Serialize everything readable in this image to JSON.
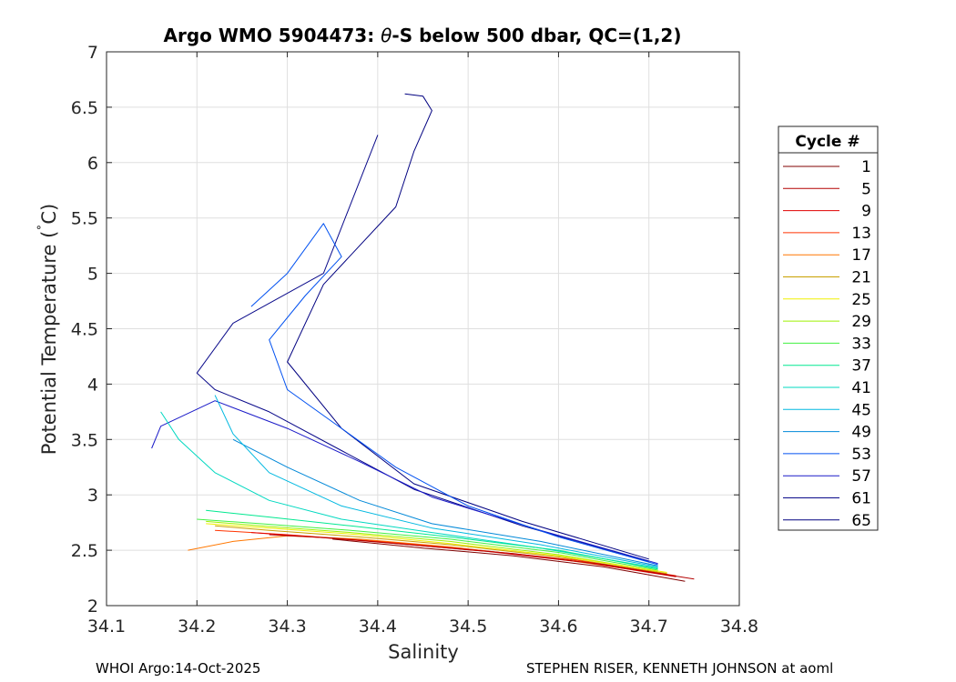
{
  "chart_data": {
    "type": "line",
    "title": "Argo WMO 5904473: θ-S below 500 dbar,  QC=(1,2)",
    "title_parts": {
      "prefix": "Argo WMO 5904473: ",
      "symbol": "θ",
      "suffix": "-S below 500 dbar,  QC=(1,2)"
    },
    "xlabel": "Salinity",
    "ylabel": "Potential Temperature (˚C)",
    "ylabel_parts": {
      "text": "Potential Temperature (",
      "degree": "˚",
      "unit": "C)"
    },
    "xlim": [
      34.1,
      34.8
    ],
    "ylim": [
      2,
      7
    ],
    "xticks": [
      "34.1",
      "34.2",
      "34.3",
      "34.4",
      "34.5",
      "34.6",
      "34.7",
      "34.8"
    ],
    "yticks": [
      "2",
      "2.5",
      "3",
      "3.5",
      "4",
      "4.5",
      "5",
      "5.5",
      "6",
      "6.5",
      "7"
    ],
    "grid": true,
    "legend": {
      "title": "Cycle #",
      "placement": "right",
      "entries": [
        {
          "label": "1",
          "color": "#800000"
        },
        {
          "label": "5",
          "color": "#b30000"
        },
        {
          "label": "9",
          "color": "#e00000"
        },
        {
          "label": "13",
          "color": "#ff3300"
        },
        {
          "label": "17",
          "color": "#ff7700"
        },
        {
          "label": "21",
          "color": "#c8a000"
        },
        {
          "label": "25",
          "color": "#f0f000"
        },
        {
          "label": "29",
          "color": "#9ef000"
        },
        {
          "label": "33",
          "color": "#40f040"
        },
        {
          "label": "37",
          "color": "#00e890"
        },
        {
          "label": "41",
          "color": "#00d8c0"
        },
        {
          "label": "45",
          "color": "#00b8e0"
        },
        {
          "label": "49",
          "color": "#0088d8"
        },
        {
          "label": "53",
          "color": "#0050f0"
        },
        {
          "label": "57",
          "color": "#1a1ac8"
        },
        {
          "label": "61",
          "color": "#0a0a8a"
        },
        {
          "label": "65",
          "color": "#000080"
        }
      ]
    },
    "series": [
      {
        "name": "1",
        "x": [
          34.74,
          34.65,
          34.55,
          34.45,
          34.35
        ],
        "y": [
          2.22,
          2.35,
          2.45,
          2.52,
          2.6
        ]
      },
      {
        "name": "5",
        "x": [
          34.75,
          34.65,
          34.55,
          34.45,
          34.35,
          34.28
        ],
        "y": [
          2.24,
          2.37,
          2.47,
          2.54,
          2.61,
          2.64
        ]
      },
      {
        "name": "9",
        "x": [
          34.73,
          34.63,
          34.52,
          34.42,
          34.33,
          34.26
        ],
        "y": [
          2.26,
          2.39,
          2.49,
          2.56,
          2.62,
          2.66
        ]
      },
      {
        "name": "13",
        "x": [
          34.73,
          34.62,
          34.5,
          34.4,
          34.3,
          34.22
        ],
        "y": [
          2.27,
          2.41,
          2.51,
          2.58,
          2.64,
          2.68
        ]
      },
      {
        "name": "17",
        "x": [
          34.72,
          34.6,
          34.48,
          34.38,
          34.3,
          34.24,
          34.19
        ],
        "y": [
          2.28,
          2.42,
          2.53,
          2.6,
          2.63,
          2.58,
          2.5
        ]
      },
      {
        "name": "21",
        "x": [
          34.72,
          34.6,
          34.48,
          34.38,
          34.28,
          34.22
        ],
        "y": [
          2.29,
          2.44,
          2.55,
          2.62,
          2.68,
          2.72
        ]
      },
      {
        "name": "25",
        "x": [
          34.72,
          34.6,
          34.48,
          34.38,
          34.28,
          34.21
        ],
        "y": [
          2.3,
          2.45,
          2.56,
          2.64,
          2.7,
          2.74
        ]
      },
      {
        "name": "29",
        "x": [
          34.71,
          34.6,
          34.48,
          34.37,
          34.27,
          34.21
        ],
        "y": [
          2.31,
          2.46,
          2.58,
          2.66,
          2.72,
          2.76
        ]
      },
      {
        "name": "33",
        "x": [
          34.71,
          34.6,
          34.48,
          34.37,
          34.27,
          34.2
        ],
        "y": [
          2.32,
          2.48,
          2.6,
          2.68,
          2.74,
          2.78
        ]
      },
      {
        "name": "37",
        "x": [
          34.71,
          34.6,
          34.48,
          34.37,
          34.28,
          34.21
        ],
        "y": [
          2.33,
          2.5,
          2.62,
          2.72,
          2.8,
          2.86
        ]
      },
      {
        "name": "41",
        "x": [
          34.71,
          34.58,
          34.46,
          34.36,
          34.28,
          34.22,
          34.18,
          34.16
        ],
        "y": [
          2.34,
          2.52,
          2.66,
          2.78,
          2.95,
          3.2,
          3.5,
          3.75
        ]
      },
      {
        "name": "45",
        "x": [
          34.71,
          34.58,
          34.46,
          34.36,
          34.28,
          34.24,
          34.22
        ],
        "y": [
          2.35,
          2.55,
          2.7,
          2.9,
          3.2,
          3.55,
          3.9
        ]
      },
      {
        "name": "49",
        "x": [
          34.71,
          34.58,
          34.46,
          34.38,
          34.3,
          34.24
        ],
        "y": [
          2.36,
          2.58,
          2.74,
          2.95,
          3.25,
          3.5
        ]
      },
      {
        "name": "53",
        "x": [
          34.71,
          34.6,
          34.5,
          34.42,
          34.36,
          34.3,
          34.28,
          34.32,
          34.36,
          34.34,
          34.3,
          34.26
        ],
        "y": [
          2.37,
          2.62,
          2.9,
          3.25,
          3.6,
          3.95,
          4.4,
          4.8,
          5.15,
          5.45,
          5.0,
          4.7
        ]
      },
      {
        "name": "57",
        "x": [
          34.71,
          34.58,
          34.46,
          34.38,
          34.3,
          34.22,
          34.16,
          34.15
        ],
        "y": [
          2.38,
          2.68,
          2.98,
          3.3,
          3.6,
          3.85,
          3.62,
          3.42
        ]
      },
      {
        "name": "61",
        "x": [
          34.7,
          34.56,
          34.44,
          34.36,
          34.28,
          34.22,
          34.2,
          34.24,
          34.34,
          34.4
        ],
        "y": [
          2.4,
          2.72,
          3.05,
          3.4,
          3.75,
          3.95,
          4.1,
          4.55,
          5.0,
          6.25
        ]
      },
      {
        "name": "65",
        "x": [
          34.7,
          34.56,
          34.44,
          34.36,
          34.3,
          34.34,
          34.42,
          34.44,
          34.46,
          34.45,
          34.43
        ],
        "y": [
          2.42,
          2.76,
          3.1,
          3.6,
          4.2,
          4.9,
          5.6,
          6.1,
          6.47,
          6.6,
          6.62
        ]
      }
    ]
  },
  "footer": {
    "left": "WHOI Argo:14-Oct-2025",
    "right": "STEPHEN RISER, KENNETH JOHNSON at aoml"
  }
}
